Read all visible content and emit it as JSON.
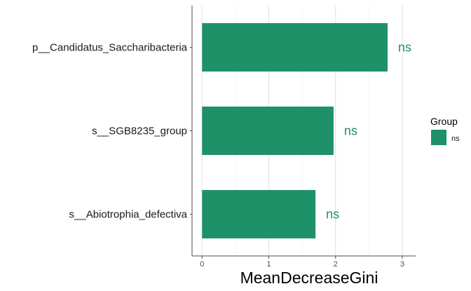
{
  "chart_data": {
    "type": "bar",
    "orientation": "horizontal",
    "categories": [
      "p__Candidatus_Saccharibacteria",
      "s__SGB8235_group",
      "s__Abiotrophia_defectiva"
    ],
    "values": [
      2.78,
      1.97,
      1.7
    ],
    "annotations": [
      "ns",
      "ns",
      "ns"
    ],
    "xlabel": "MeanDecreaseGini",
    "xlim": [
      -0.15,
      3.2
    ],
    "xticks": [
      0,
      1,
      2,
      3
    ],
    "grid": true,
    "legend": {
      "title": "Group",
      "placement": "right",
      "entries": [
        {
          "label": "ns",
          "color": "#1e9168"
        }
      ]
    },
    "colors": {
      "bar": "#1e9168",
      "annotation": "#1e9168"
    }
  }
}
